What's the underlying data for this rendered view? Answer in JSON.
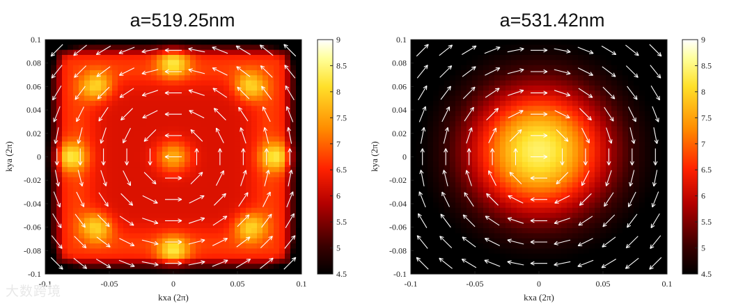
{
  "colors": {
    "colormap": [
      "#000000",
      "#8a0000",
      "#ff1a00",
      "#ff9a00",
      "#ffff66",
      "#ffffff"
    ],
    "arrow": "#ffffff"
  },
  "watermark": "大数跨境",
  "chart_data": [
    {
      "type": "heatmap",
      "title": "a=519.25nm",
      "xlabel": "kxa (2π)",
      "ylabel": "kya (2π)",
      "xlim": [
        -0.1,
        0.1
      ],
      "ylim": [
        -0.1,
        0.1
      ],
      "xticks": [
        "-0.1",
        "-0.05",
        "0",
        "0.05",
        "0.1"
      ],
      "yticks": [
        "0.1",
        "0.08",
        "0.06",
        "0.04",
        "0.02",
        "0",
        "-0.02",
        "-0.04",
        "-0.06",
        "-0.08",
        "-0.1"
      ],
      "colorbar": {
        "min": 4.5,
        "max": 9,
        "ticks": [
          "9",
          "8.5",
          "8",
          "7.5",
          "7",
          "6.5",
          "6",
          "5.5",
          "5",
          "4.5"
        ]
      },
      "field": {
        "pattern": "ring",
        "base": 6.2,
        "peak": 7.8,
        "center_peak": 7.6,
        "spots": [
          [
            0.06,
            0.06
          ],
          [
            -0.06,
            0.06
          ],
          [
            0.06,
            -0.06
          ],
          [
            -0.06,
            -0.06
          ],
          [
            0,
            0.08
          ],
          [
            0,
            -0.08
          ],
          [
            0.08,
            0
          ],
          [
            -0.08,
            0
          ]
        ]
      },
      "vector_field": "counter-clockwise vortex (arrows)"
    },
    {
      "type": "heatmap",
      "title": "a=531.42nm",
      "xlabel": "kxa (2π)",
      "ylabel": "kya (2π)",
      "xlim": [
        -0.1,
        0.1
      ],
      "ylim": [
        -0.1,
        0.1
      ],
      "xticks": [
        "-0.1",
        "-0.05",
        "0",
        "0.05",
        "0.1"
      ],
      "yticks": [
        "0.1",
        "0.08",
        "0.06",
        "0.04",
        "0.02",
        "0",
        "-0.02",
        "-0.04",
        "-0.06",
        "-0.08",
        "-0.1"
      ],
      "colorbar": {
        "min": 4.5,
        "max": 9,
        "ticks": [
          "9",
          "8.5",
          "8",
          "7.5",
          "7",
          "6.5",
          "6",
          "5.5",
          "5",
          "4.5"
        ]
      },
      "field": {
        "pattern": "gaussian",
        "peak": 8.4,
        "center": [
          0,
          0.005
        ],
        "width": 0.055
      },
      "vector_field": "clockwise vortex (arrows)"
    }
  ]
}
